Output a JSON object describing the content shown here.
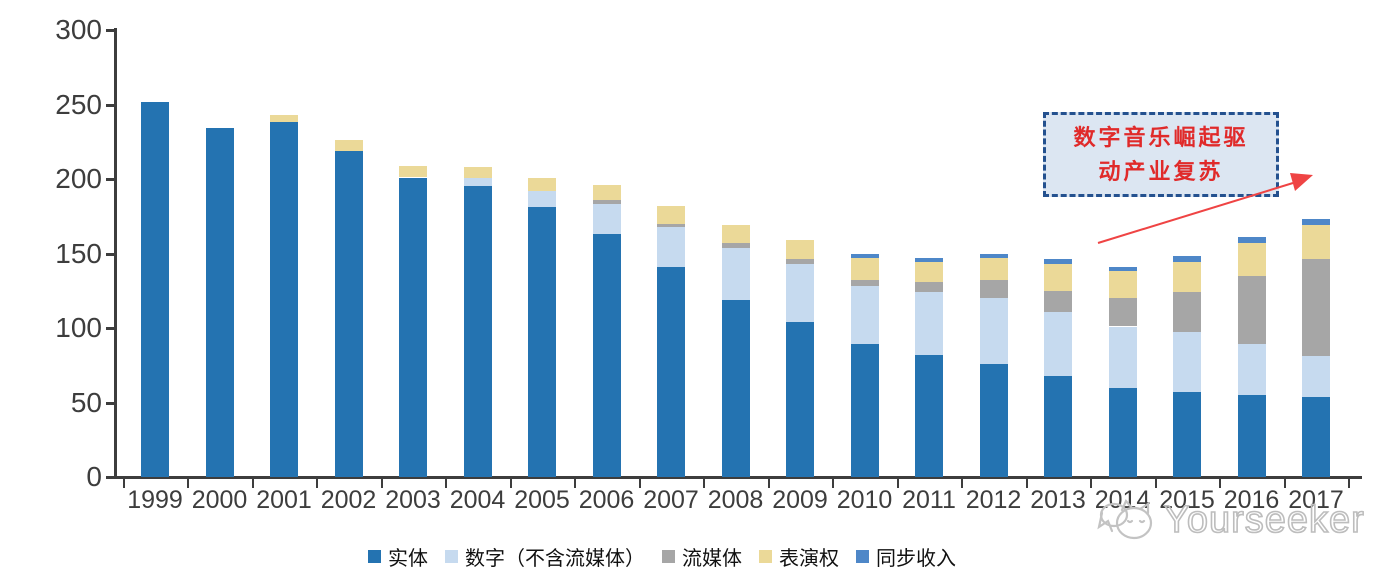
{
  "chart_data": {
    "type": "bar",
    "stacked": true,
    "title": "",
    "categories": [
      "1999",
      "2000",
      "2001",
      "2002",
      "2003",
      "2004",
      "2005",
      "2006",
      "2007",
      "2008",
      "2009",
      "2010",
      "2011",
      "2012",
      "2013",
      "2014",
      "2015",
      "2016",
      "2017"
    ],
    "series": [
      {
        "key": "physical",
        "name": "实体",
        "color": "#2473B1",
        "values": [
          252,
          234,
          238,
          219,
          201,
          195,
          181,
          163,
          141,
          119,
          104,
          89,
          82,
          76,
          68,
          60,
          57,
          55,
          54
        ]
      },
      {
        "key": "digital",
        "name": "数字（不含流媒体）",
        "color": "#C6DAEF",
        "values": [
          0,
          0,
          0,
          0,
          0,
          6,
          11,
          20,
          27,
          35,
          39,
          39,
          42,
          44,
          43,
          41,
          40,
          34,
          27
        ]
      },
      {
        "key": "streaming",
        "name": "流媒体",
        "color": "#A6A6A6",
        "values": [
          0,
          0,
          0,
          0,
          0,
          0,
          0,
          3,
          2,
          3,
          3,
          4,
          7,
          12,
          14,
          19,
          27,
          46,
          65
        ]
      },
      {
        "key": "performance",
        "name": "表演权",
        "color": "#EBD998",
        "values": [
          0,
          0,
          5,
          7,
          8,
          7,
          9,
          10,
          12,
          12,
          13,
          15,
          13,
          15,
          18,
          18,
          20,
          22,
          23
        ]
      },
      {
        "key": "sync",
        "name": "同步收入",
        "color": "#4E87C8",
        "values": [
          0,
          0,
          0,
          0,
          0,
          0,
          0,
          0,
          0,
          0,
          0,
          3,
          3,
          3,
          3,
          3,
          4,
          4,
          4
        ]
      }
    ],
    "xlabel": "",
    "ylabel": "",
    "ylim": [
      0,
      300
    ],
    "yticks": [
      0,
      50,
      100,
      150,
      200,
      250,
      300
    ],
    "legend_position": "bottom",
    "grid": false
  },
  "annotation": {
    "line1": "数字音乐崛起驱",
    "line2": "动产业复苏",
    "text_color": "#E02A2A",
    "border_color": "#24518F",
    "bg_color": "#DCE6F2",
    "arrow_color": "#EF4444"
  },
  "watermark": {
    "text": "Yourseeker",
    "logo": "yourseeker-cat-logo-icon",
    "color": "#BDBDBD"
  }
}
